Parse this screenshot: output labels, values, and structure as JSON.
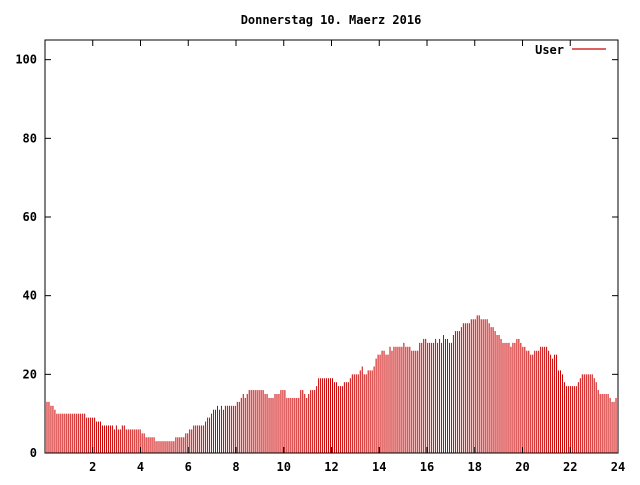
{
  "chart_data": {
    "type": "bar",
    "title": "Donnerstag 10. Maerz 2016",
    "xlabel": "",
    "ylabel": "",
    "xlim": [
      0,
      24
    ],
    "ylim": [
      0,
      105
    ],
    "x_ticks": [
      "2",
      "4",
      "6",
      "8",
      "10",
      "12",
      "14",
      "16",
      "18",
      "20",
      "22",
      "24"
    ],
    "y_ticks": [
      "0",
      "20",
      "40",
      "60",
      "80",
      "100"
    ],
    "grid": false,
    "legend_position": "top-right",
    "series_color": "#cc0000",
    "series": [
      {
        "name": "User",
        "values": [
          14,
          13,
          13,
          12,
          12,
          11,
          10,
          10,
          10,
          10,
          10,
          10,
          10,
          10,
          10,
          10,
          10,
          10,
          10,
          10,
          10,
          9,
          9,
          9,
          9,
          9,
          8,
          8,
          8,
          7,
          7,
          7,
          7,
          7,
          7,
          6,
          7,
          6,
          6,
          7,
          7,
          6,
          6,
          6,
          6,
          6,
          6,
          6,
          6,
          5,
          5,
          4,
          4,
          4,
          4,
          4,
          3,
          3,
          3,
          3,
          3,
          3,
          3,
          3,
          3,
          3,
          4,
          4,
          4,
          4,
          4,
          5,
          5,
          6,
          6,
          7,
          7,
          7,
          7,
          7,
          7,
          8,
          9,
          9,
          10,
          11,
          11,
          12,
          11,
          12,
          11,
          12,
          12,
          12,
          12,
          12,
          12,
          13,
          13,
          14,
          15,
          14,
          15,
          16,
          16,
          16,
          16,
          16,
          16,
          16,
          16,
          15,
          15,
          14,
          14,
          14,
          15,
          15,
          15,
          16,
          16,
          16,
          14,
          14,
          14,
          14,
          14,
          14,
          14,
          16,
          16,
          15,
          14,
          15,
          16,
          16,
          16,
          17,
          19,
          19,
          19,
          19,
          19,
          19,
          19,
          19,
          18,
          18,
          17,
          17,
          17,
          18,
          18,
          18,
          19,
          20,
          20,
          20,
          20,
          21,
          22,
          20,
          20,
          21,
          21,
          21,
          22,
          24,
          25,
          25,
          26,
          26,
          25,
          25,
          27,
          26,
          27,
          27,
          27,
          27,
          27,
          28,
          27,
          27,
          27,
          26,
          26,
          26,
          26,
          28,
          28,
          29,
          29,
          28,
          28,
          28,
          28,
          29,
          28,
          29,
          28,
          30,
          29,
          29,
          28,
          28,
          30,
          31,
          31,
          31,
          32,
          33,
          33,
          33,
          33,
          34,
          34,
          34,
          35,
          35,
          34,
          34,
          34,
          34,
          33,
          32,
          32,
          31,
          30,
          30,
          29,
          28,
          28,
          28,
          28,
          27,
          28,
          28,
          29,
          29,
          28,
          27,
          27,
          26,
          26,
          25,
          25,
          26,
          26,
          26,
          27,
          27,
          27,
          27,
          26,
          25,
          24,
          25,
          25,
          21,
          21,
          20,
          18,
          17,
          17,
          17,
          17,
          17,
          17,
          18,
          19,
          20,
          20,
          20,
          20,
          20,
          20,
          19,
          18,
          16,
          15,
          15,
          15,
          15,
          15,
          14,
          13,
          13,
          14,
          14
        ]
      }
    ]
  }
}
